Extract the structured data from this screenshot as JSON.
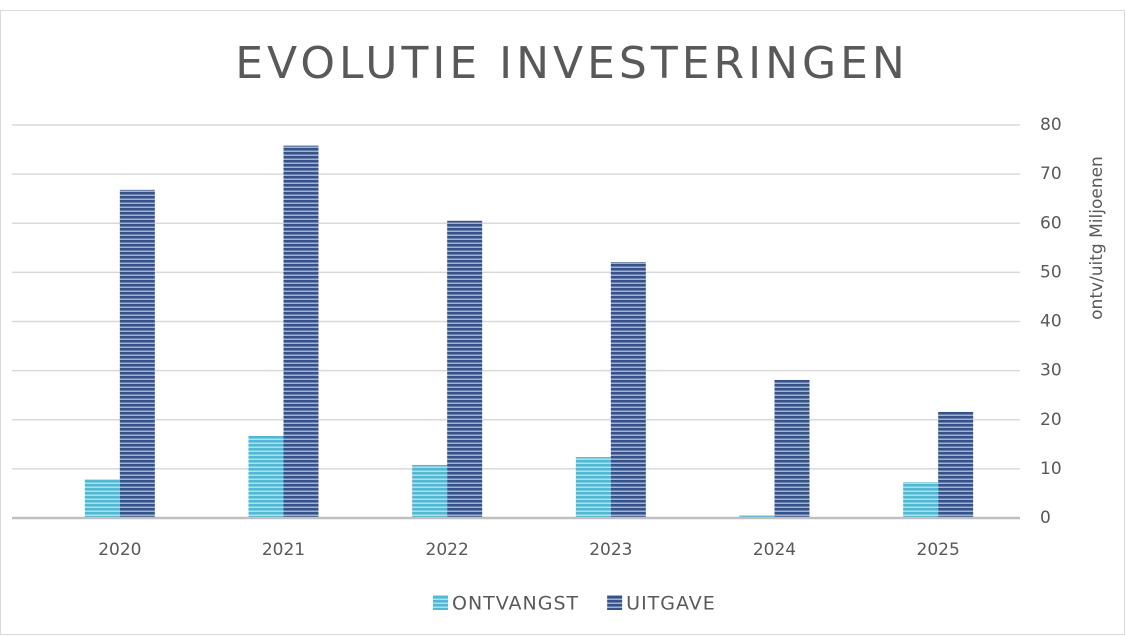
{
  "chart_data": {
    "type": "bar",
    "title": "EVOLUTIE INVESTERINGEN",
    "y_axis_label": "ontv/uitg Miljoenen",
    "categories": [
      "2020",
      "2021",
      "2022",
      "2023",
      "2024",
      "2025"
    ],
    "series": [
      {
        "name": "ONTVANGST",
        "color": "#4fb8d2",
        "values": [
          7.9,
          16.7,
          10.8,
          12.4,
          0.6,
          7.3
        ]
      },
      {
        "name": "UITGAVE",
        "color": "#34538a",
        "values": [
          66.8,
          75.8,
          60.5,
          52.1,
          28.1,
          21.6
        ]
      }
    ],
    "ylim": [
      0,
      80
    ],
    "yticks": [
      0,
      10,
      20,
      30,
      40,
      50,
      60,
      70,
      80
    ],
    "grid": true,
    "legend": "bottom"
  }
}
